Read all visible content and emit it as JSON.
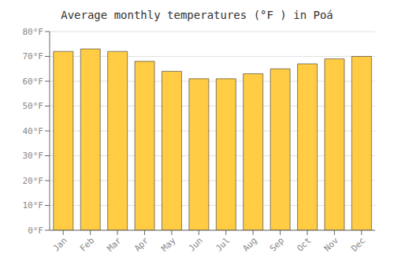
{
  "chart_data": {
    "type": "bar",
    "title": "Average monthly temperatures (°F ) in Poá",
    "categories": [
      "Jan",
      "Feb",
      "Mar",
      "Apr",
      "May",
      "Jun",
      "Jul",
      "Aug",
      "Sep",
      "Oct",
      "Nov",
      "Dec"
    ],
    "values": [
      72,
      73,
      72,
      68,
      64,
      61,
      61,
      63,
      65,
      67,
      69,
      70
    ],
    "color": "#FFCC44",
    "ylim": [
      0,
      80
    ],
    "yticks": [
      {
        "value": 0,
        "label": "0°F"
      },
      {
        "value": 10,
        "label": "10°F"
      },
      {
        "value": 20,
        "label": "20°F"
      },
      {
        "value": 30,
        "label": "30°F"
      },
      {
        "value": 40,
        "label": "40°F"
      },
      {
        "value": 50,
        "label": "50°F"
      },
      {
        "value": 60,
        "label": "60°F"
      },
      {
        "value": 70,
        "label": "70°F"
      },
      {
        "value": 80,
        "label": "80°F"
      }
    ],
    "grid": true
  }
}
